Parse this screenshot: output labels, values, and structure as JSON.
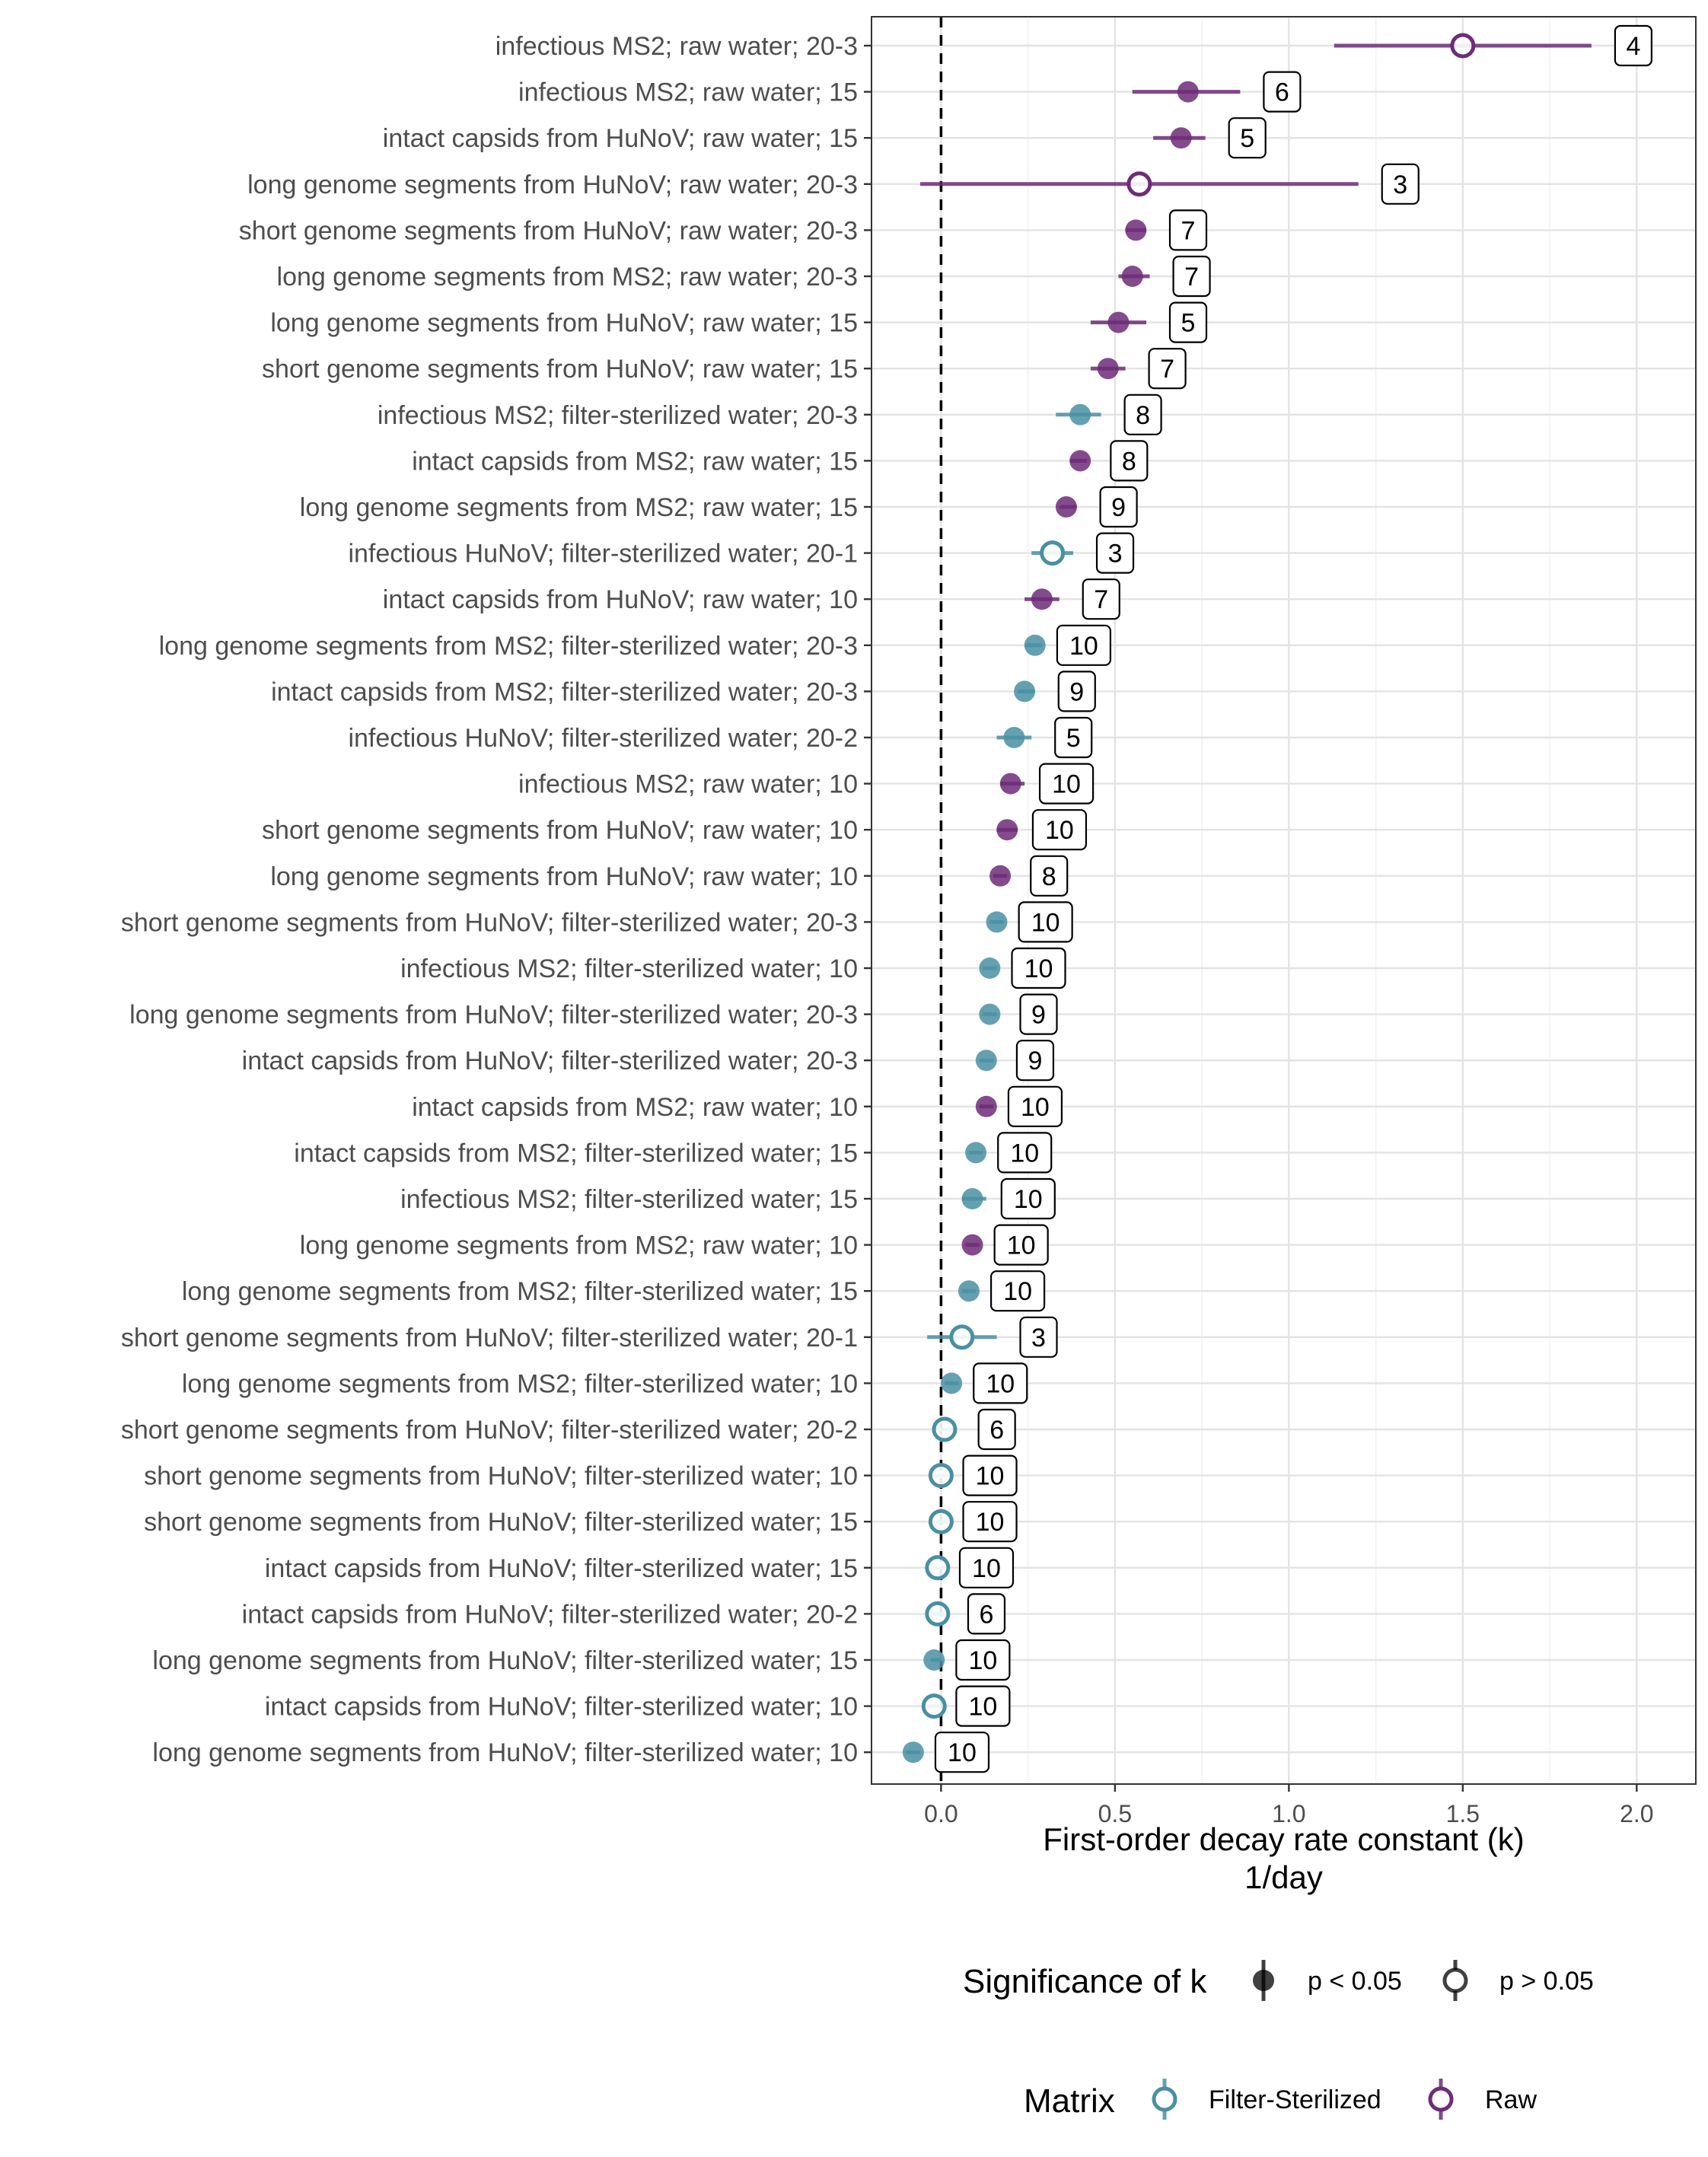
{
  "chart_data": {
    "type": "scatter",
    "orientation": "horizontal",
    "xlabel": "First-order decay rate constant (k)",
    "xunit": "1/day",
    "xlim": [
      -0.2,
      2.17
    ],
    "xticks": [
      0.0,
      0.5,
      1.0,
      1.5,
      2.0
    ],
    "xtick_labels": [
      "0.0",
      "0.5",
      "1.0",
      "1.5",
      "2.0"
    ],
    "reference_line": {
      "x": 0,
      "style": "dashed",
      "color": "#000000"
    },
    "grid": true,
    "legend_position": "bottom",
    "colors": {
      "Filter-Sterilized": "#4a8fa3",
      "Raw": "#6d2c78"
    },
    "legends": {
      "significance": {
        "title": "Significance of k",
        "items": [
          {
            "label": "p < 0.05",
            "filled": true
          },
          {
            "label": "p > 0.05",
            "filled": false
          }
        ]
      },
      "matrix": {
        "title": "Matrix",
        "items": [
          {
            "label": "Filter-Sterilized",
            "key": "Filter-Sterilized"
          },
          {
            "label": "Raw",
            "key": "Raw"
          }
        ]
      }
    },
    "points": [
      {
        "label": "infectious MS2; raw water; 20-3",
        "matrix": "Raw",
        "k": 1.5,
        "low": 1.13,
        "high": 1.87,
        "significant": false,
        "n": "4"
      },
      {
        "label": "infectious MS2; raw water; 15",
        "matrix": "Raw",
        "k": 0.71,
        "low": 0.55,
        "high": 0.86,
        "significant": true,
        "n": "6"
      },
      {
        "label": "intact capsids from HuNoV; raw water; 15",
        "matrix": "Raw",
        "k": 0.69,
        "low": 0.61,
        "high": 0.76,
        "significant": true,
        "n": "5"
      },
      {
        "label": "long genome segments from HuNoV; raw water; 20-3",
        "matrix": "Raw",
        "k": 0.57,
        "low": -0.06,
        "high": 1.2,
        "significant": false,
        "n": "3"
      },
      {
        "label": "short genome segments from HuNoV; raw water; 20-3",
        "matrix": "Raw",
        "k": 0.56,
        "low": 0.53,
        "high": 0.59,
        "significant": true,
        "n": "7"
      },
      {
        "label": "long genome segments from MS2; raw water; 20-3",
        "matrix": "Raw",
        "k": 0.55,
        "low": 0.51,
        "high": 0.6,
        "significant": true,
        "n": "7"
      },
      {
        "label": "long genome segments from HuNoV; raw water; 15",
        "matrix": "Raw",
        "k": 0.51,
        "low": 0.43,
        "high": 0.59,
        "significant": true,
        "n": "5"
      },
      {
        "label": "short genome segments from HuNoV; raw water; 15",
        "matrix": "Raw",
        "k": 0.48,
        "low": 0.43,
        "high": 0.53,
        "significant": true,
        "n": "7"
      },
      {
        "label": "infectious MS2; filter-sterilized water; 20-3",
        "matrix": "Filter-Sterilized",
        "k": 0.4,
        "low": 0.33,
        "high": 0.46,
        "significant": true,
        "n": "8"
      },
      {
        "label": "intact capsids from MS2; raw water; 15",
        "matrix": "Raw",
        "k": 0.4,
        "low": 0.37,
        "high": 0.42,
        "significant": true,
        "n": "8"
      },
      {
        "label": "long genome segments from MS2; raw water; 15",
        "matrix": "Raw",
        "k": 0.36,
        "low": 0.34,
        "high": 0.39,
        "significant": true,
        "n": "9"
      },
      {
        "label": "infectious HuNoV; filter-sterilized water; 20-1",
        "matrix": "Filter-Sterilized",
        "k": 0.32,
        "low": 0.26,
        "high": 0.38,
        "significant": false,
        "n": "3"
      },
      {
        "label": "intact capsids from HuNoV; raw water; 10",
        "matrix": "Raw",
        "k": 0.29,
        "low": 0.24,
        "high": 0.34,
        "significant": true,
        "n": "7"
      },
      {
        "label": "long genome segments from MS2; filter-sterilized water; 20-3",
        "matrix": "Filter-Sterilized",
        "k": 0.27,
        "low": 0.24,
        "high": 0.29,
        "significant": true,
        "n": "10"
      },
      {
        "label": "intact capsids from MS2; filter-sterilized water; 20-3",
        "matrix": "Filter-Sterilized",
        "k": 0.24,
        "low": 0.22,
        "high": 0.27,
        "significant": true,
        "n": "9"
      },
      {
        "label": "infectious HuNoV; filter-sterilized water; 20-2",
        "matrix": "Filter-Sterilized",
        "k": 0.21,
        "low": 0.16,
        "high": 0.26,
        "significant": true,
        "n": "5"
      },
      {
        "label": "infectious MS2; raw water; 10",
        "matrix": "Raw",
        "k": 0.2,
        "low": 0.17,
        "high": 0.24,
        "significant": true,
        "n": "10"
      },
      {
        "label": "short genome segments from HuNoV; raw water; 10",
        "matrix": "Raw",
        "k": 0.19,
        "low": 0.16,
        "high": 0.22,
        "significant": true,
        "n": "10"
      },
      {
        "label": "long genome segments from HuNoV; raw water; 10",
        "matrix": "Raw",
        "k": 0.17,
        "low": 0.15,
        "high": 0.19,
        "significant": true,
        "n": "8"
      },
      {
        "label": "short genome segments from HuNoV; filter-sterilized water; 20-3",
        "matrix": "Filter-Sterilized",
        "k": 0.16,
        "low": 0.14,
        "high": 0.18,
        "significant": true,
        "n": "10"
      },
      {
        "label": "infectious MS2; filter-sterilized water; 10",
        "matrix": "Filter-Sterilized",
        "k": 0.14,
        "low": 0.12,
        "high": 0.16,
        "significant": true,
        "n": "10"
      },
      {
        "label": "long genome segments from HuNoV; filter-sterilized water; 20-3",
        "matrix": "Filter-Sterilized",
        "k": 0.14,
        "low": 0.12,
        "high": 0.16,
        "significant": true,
        "n": "9"
      },
      {
        "label": "intact capsids from HuNoV; filter-sterilized water; 20-3",
        "matrix": "Filter-Sterilized",
        "k": 0.13,
        "low": 0.11,
        "high": 0.15,
        "significant": true,
        "n": "9"
      },
      {
        "label": "intact capsids from MS2; raw water; 10",
        "matrix": "Raw",
        "k": 0.13,
        "low": 0.11,
        "high": 0.15,
        "significant": true,
        "n": "10"
      },
      {
        "label": "intact capsids from MS2; filter-sterilized water; 15",
        "matrix": "Filter-Sterilized",
        "k": 0.1,
        "low": 0.08,
        "high": 0.12,
        "significant": true,
        "n": "10"
      },
      {
        "label": "infectious MS2; filter-sterilized water; 15",
        "matrix": "Filter-Sterilized",
        "k": 0.09,
        "low": 0.06,
        "high": 0.13,
        "significant": true,
        "n": "10"
      },
      {
        "label": "long genome segments from MS2; raw water; 10",
        "matrix": "Raw",
        "k": 0.09,
        "low": 0.07,
        "high": 0.11,
        "significant": true,
        "n": "10"
      },
      {
        "label": "long genome segments from MS2; filter-sterilized water; 15",
        "matrix": "Filter-Sterilized",
        "k": 0.08,
        "low": 0.06,
        "high": 0.1,
        "significant": true,
        "n": "10"
      },
      {
        "label": "short genome segments from HuNoV; filter-sterilized water; 20-1",
        "matrix": "Filter-Sterilized",
        "k": 0.06,
        "low": -0.04,
        "high": 0.16,
        "significant": false,
        "n": "3"
      },
      {
        "label": "long genome segments from MS2; filter-sterilized water; 10",
        "matrix": "Filter-Sterilized",
        "k": 0.03,
        "low": 0.01,
        "high": 0.05,
        "significant": true,
        "n": "10"
      },
      {
        "label": "short genome segments from HuNoV; filter-sterilized water; 20-2",
        "matrix": "Filter-Sterilized",
        "k": 0.01,
        "low": -0.02,
        "high": 0.04,
        "significant": false,
        "n": "6"
      },
      {
        "label": "short genome segments from HuNoV; filter-sterilized water; 10",
        "matrix": "Filter-Sterilized",
        "k": 0.0,
        "low": -0.02,
        "high": 0.02,
        "significant": false,
        "n": "10"
      },
      {
        "label": "short genome segments from HuNoV; filter-sterilized water; 15",
        "matrix": "Filter-Sterilized",
        "k": 0.0,
        "low": -0.02,
        "high": 0.02,
        "significant": false,
        "n": "10"
      },
      {
        "label": "intact capsids from HuNoV; filter-sterilized water; 15",
        "matrix": "Filter-Sterilized",
        "k": -0.01,
        "low": -0.03,
        "high": 0.01,
        "significant": false,
        "n": "10"
      },
      {
        "label": "intact capsids from HuNoV; filter-sterilized water; 20-2",
        "matrix": "Filter-Sterilized",
        "k": -0.01,
        "low": -0.03,
        "high": 0.01,
        "significant": false,
        "n": "6"
      },
      {
        "label": "long genome segments from HuNoV; filter-sterilized water; 15",
        "matrix": "Filter-Sterilized",
        "k": -0.02,
        "low": -0.03,
        "high": 0.0,
        "significant": true,
        "n": "10"
      },
      {
        "label": "intact capsids from HuNoV; filter-sterilized water; 10",
        "matrix": "Filter-Sterilized",
        "k": -0.02,
        "low": -0.04,
        "high": 0.0,
        "significant": false,
        "n": "10"
      },
      {
        "label": "long genome segments from HuNoV; filter-sterilized water; 10",
        "matrix": "Filter-Sterilized",
        "k": -0.08,
        "low": -0.1,
        "high": -0.06,
        "significant": true,
        "n": "10"
      }
    ]
  }
}
